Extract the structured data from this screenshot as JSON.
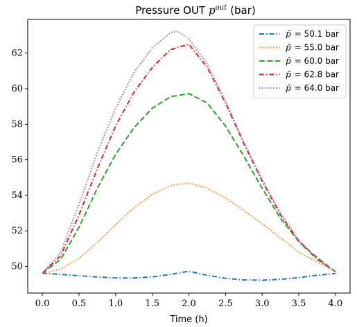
{
  "chart_data": {
    "type": "line",
    "title": "Pressure OUT",
    "title_symbol": "p",
    "title_superscript": "out",
    "title_unit": "(bar)",
    "xlabel": "Time (h)",
    "ylabel": "",
    "xlim": [
      -0.2,
      4.2
    ],
    "ylim": [
      48.5,
      63.9
    ],
    "xticks": [
      "0.0",
      "0.5",
      "1.0",
      "1.5",
      "2.0",
      "2.5",
      "3.0",
      "3.5",
      "4.0"
    ],
    "yticks": [
      "50",
      "52",
      "54",
      "56",
      "58",
      "60",
      "62"
    ],
    "grid": false,
    "legend_position": "top-right",
    "legend_symbol": "p̄",
    "series": [
      {
        "name": "= 50.1 bar",
        "color": "#1f77b4",
        "style": "dashdot",
        "x": [
          0.0,
          0.25,
          0.5,
          0.75,
          1.0,
          1.25,
          1.5,
          1.75,
          2.0,
          2.25,
          2.5,
          2.75,
          3.0,
          3.25,
          3.5,
          3.75,
          4.0
        ],
        "y": [
          49.62,
          49.55,
          49.47,
          49.4,
          49.35,
          49.35,
          49.41,
          49.55,
          49.73,
          49.5,
          49.33,
          49.24,
          49.22,
          49.27,
          49.37,
          49.5,
          49.6
        ]
      },
      {
        "name": "= 55.0 bar",
        "color": "#ff7f0e",
        "style": "dotted",
        "x": [
          0.0,
          0.25,
          0.5,
          0.75,
          1.0,
          1.25,
          1.5,
          1.75,
          2.0,
          2.25,
          2.5,
          2.75,
          3.0,
          3.25,
          3.5,
          3.75,
          4.0
        ],
        "y": [
          49.62,
          49.85,
          50.45,
          51.35,
          52.35,
          53.3,
          54.05,
          54.55,
          54.7,
          54.4,
          53.85,
          53.15,
          52.4,
          51.6,
          50.8,
          50.25,
          49.7
        ]
      },
      {
        "name": "= 60.0 bar",
        "color": "#2ca02c",
        "style": "dashed",
        "x": [
          0.0,
          0.25,
          0.5,
          0.75,
          1.0,
          1.25,
          1.5,
          1.75,
          2.0,
          2.25,
          2.5,
          2.75,
          3.0,
          3.25,
          3.5,
          3.75,
          4.0
        ],
        "y": [
          49.62,
          50.4,
          52.2,
          54.4,
          56.3,
          57.8,
          58.9,
          59.55,
          59.72,
          59.2,
          57.9,
          56.2,
          54.4,
          52.7,
          51.4,
          50.5,
          49.7
        ]
      },
      {
        "name": "= 62.8 bar",
        "color": "#d62728",
        "style": "dashdot",
        "x": [
          0.0,
          0.25,
          0.5,
          0.75,
          1.0,
          1.25,
          1.5,
          1.75,
          2.0,
          2.25,
          2.5,
          2.75,
          3.0,
          3.25,
          3.5,
          3.75,
          4.0
        ],
        "y": [
          49.62,
          50.6,
          52.9,
          55.5,
          57.9,
          59.8,
          61.2,
          62.2,
          62.5,
          61.2,
          59.2,
          56.9,
          54.8,
          52.9,
          51.4,
          50.4,
          49.7
        ]
      },
      {
        "name": "= 64.0 bar",
        "color": "#9467bd",
        "style": "dotted",
        "x": [
          0.0,
          0.25,
          0.5,
          0.75,
          1.0,
          1.25,
          1.5,
          1.75,
          1.85,
          2.0,
          2.25,
          2.5,
          2.75,
          3.0,
          3.25,
          3.5,
          3.75,
          4.0
        ],
        "y": [
          49.62,
          50.8,
          53.5,
          56.4,
          58.9,
          60.9,
          62.3,
          63.15,
          63.22,
          62.8,
          61.4,
          59.3,
          57.0,
          54.9,
          53.0,
          51.5,
          50.4,
          49.7
        ]
      }
    ]
  }
}
